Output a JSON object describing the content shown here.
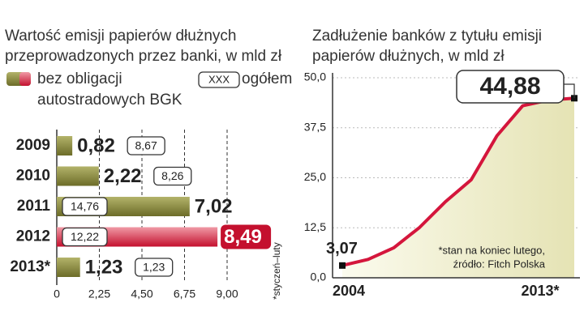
{
  "chart_data": [
    {
      "type": "hbar",
      "title": [
        "Wartość emisji papierów dłużnych",
        "przeprowadzonych przez banki, w mld zł"
      ],
      "legend_box_text": "XXX",
      "categories": [
        "2009",
        "2010",
        "2011",
        "2012",
        "2013*"
      ],
      "series": [
        {
          "name": [
            "bez obligacji",
            "autostradowych BGK"
          ],
          "colors": [
            "#8a8a3c",
            "#8a8a3c",
            "#8a8a3c",
            "#d0203e",
            "#8a8a3c"
          ],
          "values": [
            0.82,
            2.22,
            7.02,
            8.49,
            1.23
          ],
          "value_labels": [
            "0,82",
            "2,22",
            "7,02",
            "8,49",
            "1,23"
          ]
        },
        {
          "name": "ogółem",
          "values": [
            8.67,
            8.26,
            14.76,
            12.22,
            1.23
          ],
          "value_labels": [
            "8,67",
            "8,26",
            "14,76",
            "12,22",
            "1,23"
          ]
        }
      ],
      "xlim": [
        0,
        9.5
      ],
      "xticks": [
        0,
        {
          "value": 2.25,
          "label": "2,25"
        },
        {
          "value": 4.5,
          "label": "4,50"
        },
        {
          "value": 6.75,
          "label": "6,75"
        },
        {
          "value": 9,
          "label": "9,00"
        }
      ],
      "grid": true,
      "annotation": "*styczeń–luty"
    },
    {
      "type": "area",
      "title": [
        "Zadłużenie banków z tytułu emisji",
        "papierów dłużnych, w mld zł"
      ],
      "x": [
        "2004",
        null,
        null,
        null,
        null,
        null,
        null,
        null,
        null,
        "2013*"
      ],
      "values": [
        3.07,
        4.6,
        7.5,
        12.6,
        19,
        24.5,
        35.5,
        43,
        44.4,
        44.88
      ],
      "value_labels": [
        "3,07",
        null,
        null,
        null,
        null,
        null,
        null,
        null,
        null,
        "44,88"
      ],
      "color": "#d4163c",
      "ylim": [
        0,
        50
      ],
      "yticks": [
        {
          "value": 0,
          "label": "0,0"
        },
        {
          "value": 12.5,
          "label": "12,5"
        },
        {
          "value": 25,
          "label": "25,0"
        },
        {
          "value": 37.5,
          "label": "37,5"
        },
        {
          "value": 50,
          "label": "50,0"
        }
      ],
      "grid": true,
      "note": [
        "*stan na koniec lutego,",
        "źródło: Fitch Polska"
      ]
    }
  ]
}
